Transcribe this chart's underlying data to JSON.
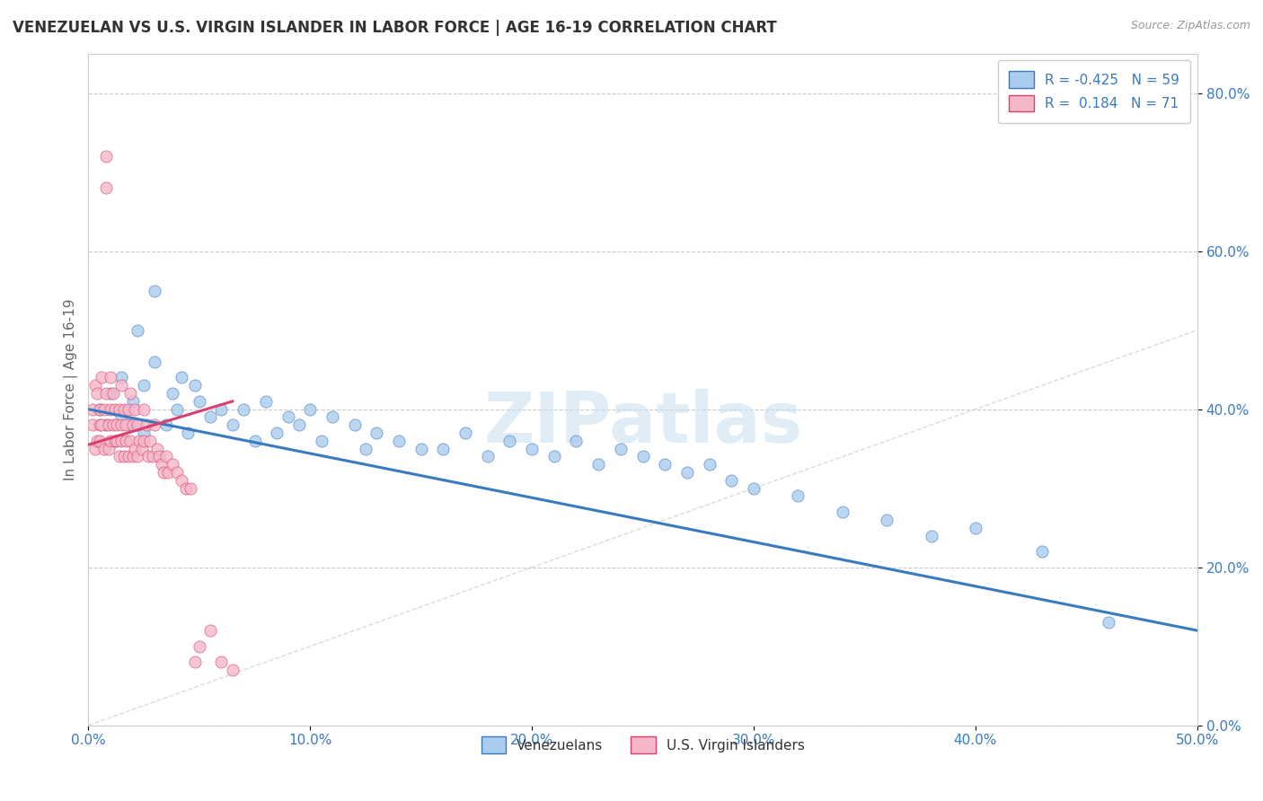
{
  "title": "VENEZUELAN VS U.S. VIRGIN ISLANDER IN LABOR FORCE | AGE 16-19 CORRELATION CHART",
  "source": "Source: ZipAtlas.com",
  "ylabel": "In Labor Force | Age 16-19",
  "xlim": [
    0.0,
    0.5
  ],
  "ylim": [
    0.0,
    0.85
  ],
  "xticks": [
    0.0,
    0.1,
    0.2,
    0.3,
    0.4,
    0.5
  ],
  "yticks": [
    0.0,
    0.2,
    0.4,
    0.6,
    0.8
  ],
  "xticklabels": [
    "0.0%",
    "10.0%",
    "20.0%",
    "30.0%",
    "40.0%",
    "50.0%"
  ],
  "yticklabels": [
    "0.0%",
    "20.0%",
    "40.0%",
    "60.0%",
    "80.0%"
  ],
  "r_blue": -0.425,
  "n_blue": 59,
  "r_pink": 0.184,
  "n_pink": 71,
  "blue_color": "#aaccee",
  "pink_color": "#f5b8c8",
  "blue_line_color": "#3a7abf",
  "pink_line_color": "#d94070",
  "diagonal_color": "#cccccc",
  "watermark": "ZIPatlas",
  "blue_scatter_x": [
    0.005,
    0.008,
    0.01,
    0.012,
    0.015,
    0.015,
    0.018,
    0.02,
    0.022,
    0.025,
    0.025,
    0.03,
    0.03,
    0.035,
    0.038,
    0.04,
    0.042,
    0.045,
    0.048,
    0.05,
    0.055,
    0.06,
    0.065,
    0.07,
    0.075,
    0.08,
    0.085,
    0.09,
    0.095,
    0.1,
    0.105,
    0.11,
    0.12,
    0.125,
    0.13,
    0.14,
    0.15,
    0.16,
    0.17,
    0.18,
    0.19,
    0.2,
    0.21,
    0.22,
    0.23,
    0.24,
    0.25,
    0.26,
    0.27,
    0.28,
    0.29,
    0.3,
    0.32,
    0.34,
    0.36,
    0.38,
    0.4,
    0.43,
    0.46
  ],
  "blue_scatter_y": [
    0.4,
    0.38,
    0.42,
    0.36,
    0.44,
    0.39,
    0.38,
    0.41,
    0.5,
    0.43,
    0.37,
    0.46,
    0.55,
    0.38,
    0.42,
    0.4,
    0.44,
    0.37,
    0.43,
    0.41,
    0.39,
    0.4,
    0.38,
    0.4,
    0.36,
    0.41,
    0.37,
    0.39,
    0.38,
    0.4,
    0.36,
    0.39,
    0.38,
    0.35,
    0.37,
    0.36,
    0.35,
    0.35,
    0.37,
    0.34,
    0.36,
    0.35,
    0.34,
    0.36,
    0.33,
    0.35,
    0.34,
    0.33,
    0.32,
    0.33,
    0.31,
    0.3,
    0.29,
    0.27,
    0.26,
    0.24,
    0.25,
    0.22,
    0.13
  ],
  "pink_scatter_x": [
    0.002,
    0.002,
    0.003,
    0.003,
    0.004,
    0.004,
    0.005,
    0.005,
    0.005,
    0.006,
    0.006,
    0.007,
    0.007,
    0.008,
    0.008,
    0.008,
    0.009,
    0.009,
    0.01,
    0.01,
    0.01,
    0.011,
    0.011,
    0.012,
    0.012,
    0.013,
    0.013,
    0.014,
    0.014,
    0.015,
    0.015,
    0.015,
    0.016,
    0.016,
    0.017,
    0.017,
    0.018,
    0.018,
    0.019,
    0.019,
    0.02,
    0.02,
    0.021,
    0.021,
    0.022,
    0.022,
    0.023,
    0.024,
    0.025,
    0.025,
    0.026,
    0.027,
    0.028,
    0.029,
    0.03,
    0.031,
    0.032,
    0.033,
    0.034,
    0.035,
    0.036,
    0.038,
    0.04,
    0.042,
    0.044,
    0.046,
    0.048,
    0.05,
    0.055,
    0.06,
    0.065
  ],
  "pink_scatter_y": [
    0.4,
    0.38,
    0.43,
    0.35,
    0.36,
    0.42,
    0.38,
    0.4,
    0.36,
    0.44,
    0.38,
    0.4,
    0.35,
    0.68,
    0.72,
    0.42,
    0.38,
    0.35,
    0.4,
    0.44,
    0.36,
    0.38,
    0.42,
    0.36,
    0.4,
    0.38,
    0.36,
    0.4,
    0.34,
    0.38,
    0.43,
    0.36,
    0.4,
    0.34,
    0.38,
    0.36,
    0.4,
    0.34,
    0.42,
    0.36,
    0.38,
    0.34,
    0.4,
    0.35,
    0.38,
    0.34,
    0.36,
    0.35,
    0.4,
    0.36,
    0.38,
    0.34,
    0.36,
    0.34,
    0.38,
    0.35,
    0.34,
    0.33,
    0.32,
    0.34,
    0.32,
    0.33,
    0.32,
    0.31,
    0.3,
    0.3,
    0.08,
    0.1,
    0.12,
    0.08,
    0.07
  ]
}
